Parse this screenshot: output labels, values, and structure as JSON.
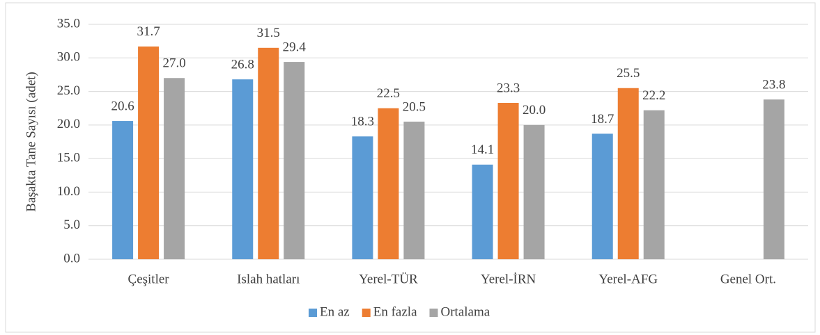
{
  "chart_data": {
    "type": "bar",
    "y_label": "Başakta Tane Sayısı (adet)",
    "categories": [
      "Çeşitler",
      "Islah hatları",
      "Yerel-TÜR",
      "Yerel-İRN",
      "Yerel-AFG",
      "Genel Ort."
    ],
    "series": [
      {
        "name": "En az",
        "color": "#5b9bd5",
        "values": [
          20.6,
          26.8,
          18.3,
          14.1,
          18.7,
          null
        ],
        "value_labels": [
          "20.6",
          "26.8",
          "18.3",
          "14.1",
          "18.7",
          null
        ]
      },
      {
        "name": "En fazla",
        "color": "#ed7d31",
        "values": [
          31.7,
          31.5,
          22.5,
          23.3,
          25.5,
          null
        ],
        "value_labels": [
          "31.7",
          "31.5",
          "22.5",
          "23.3",
          "25.5",
          null
        ]
      },
      {
        "name": "Ortalama",
        "color": "#a5a5a5",
        "values": [
          27.0,
          29.4,
          20.5,
          20.0,
          22.2,
          23.8
        ],
        "value_labels": [
          "27.0",
          "29.4",
          "20.5",
          "20.0",
          "22.2",
          "23.8"
        ]
      }
    ],
    "ylim": [
      0,
      35
    ],
    "yticks": [
      {
        "value": 0,
        "label": "0.0"
      },
      {
        "value": 5,
        "label": "5.0"
      },
      {
        "value": 10,
        "label": "10.0"
      },
      {
        "value": 15,
        "label": "15.0"
      },
      {
        "value": 20,
        "label": "20.0"
      },
      {
        "value": 25,
        "label": "25.0"
      },
      {
        "value": 30,
        "label": "30.0"
      },
      {
        "value": 35,
        "label": "35.0"
      }
    ],
    "grid": true,
    "legend": "bottom"
  }
}
